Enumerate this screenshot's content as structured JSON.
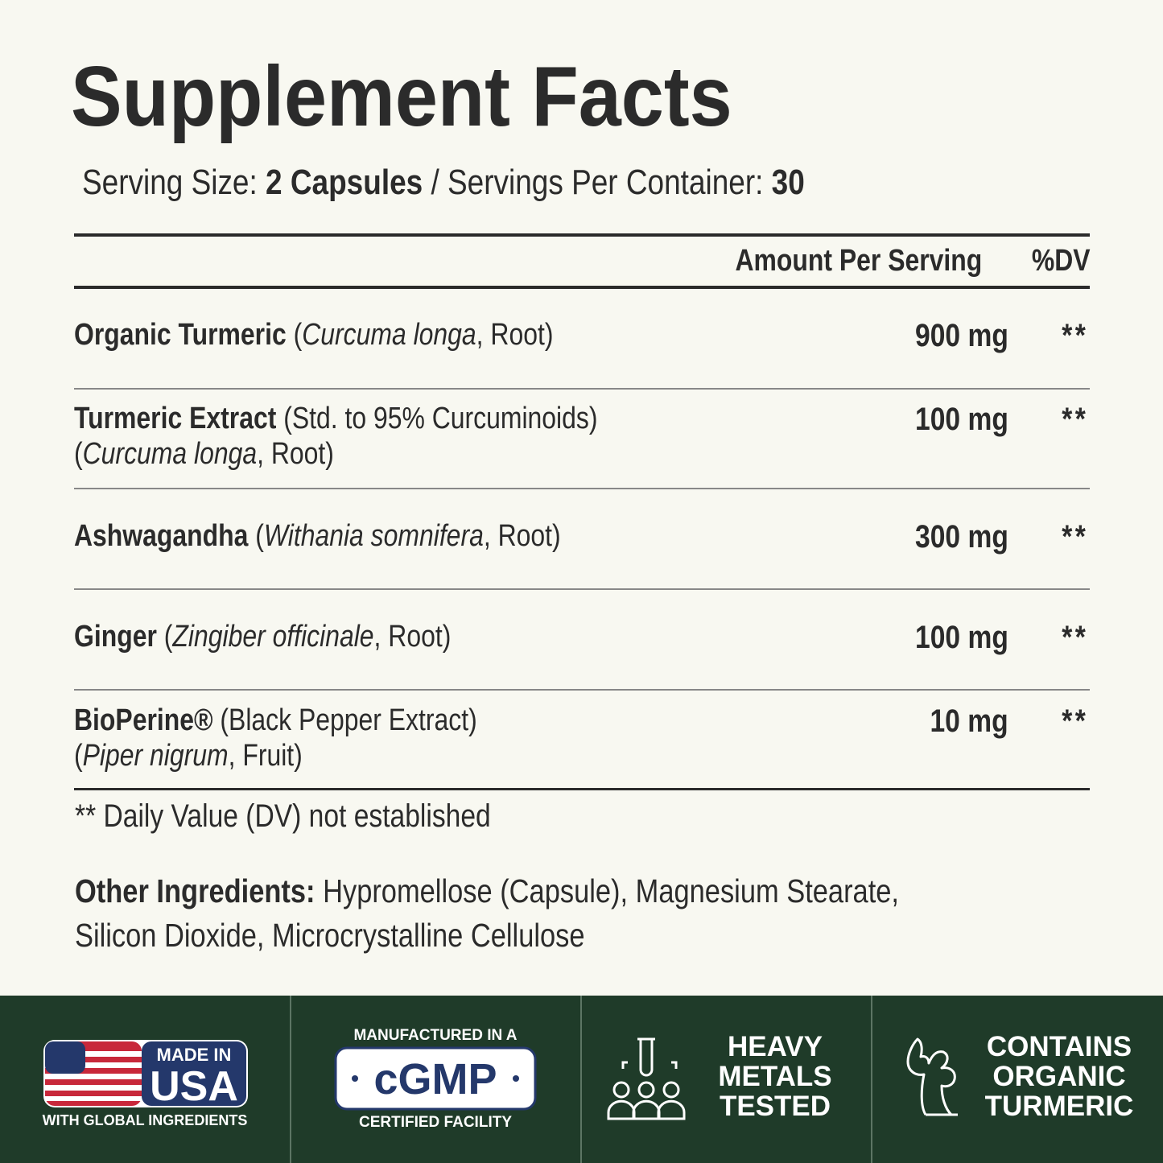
{
  "title": "Supplement Facts",
  "serving": {
    "size_label": "Serving Size:",
    "size_value": "2 Capsules",
    "per_container_label": "/ Servings Per Container:",
    "per_container_value": "30"
  },
  "table": {
    "header": {
      "amount": "Amount Per Serving",
      "dv": "%DV"
    },
    "rows": [
      {
        "lines": [
          [
            {
              "text": "Organic Turmeric",
              "style": "bold"
            },
            {
              "text": " (",
              "style": "normal"
            },
            {
              "text": "Curcuma longa",
              "style": "italic"
            },
            {
              "text": ", Root)",
              "style": "normal"
            }
          ]
        ],
        "amount": "900 mg",
        "dv": "**"
      },
      {
        "lines": [
          [
            {
              "text": "Turmeric Extract",
              "style": "bold"
            },
            {
              "text": " (Std. to 95% Curcuminoids)",
              "style": "normal"
            }
          ],
          [
            {
              "text": "(",
              "style": "normal"
            },
            {
              "text": "Curcuma longa",
              "style": "italic"
            },
            {
              "text": ", Root)",
              "style": "normal"
            }
          ]
        ],
        "amount": "100 mg",
        "dv": "**"
      },
      {
        "lines": [
          [
            {
              "text": "Ashwagandha",
              "style": "bold"
            },
            {
              "text": " (",
              "style": "normal"
            },
            {
              "text": "Withania somnifera",
              "style": "italic"
            },
            {
              "text": ", Root)",
              "style": "normal"
            }
          ]
        ],
        "amount": "300 mg",
        "dv": "**"
      },
      {
        "lines": [
          [
            {
              "text": "Ginger",
              "style": "bold"
            },
            {
              "text": " (",
              "style": "normal"
            },
            {
              "text": "Zingiber officinale",
              "style": "italic"
            },
            {
              "text": ", Root)",
              "style": "normal"
            }
          ]
        ],
        "amount": "100 mg",
        "dv": "**"
      },
      {
        "lines": [
          [
            {
              "text": "BioPerine®",
              "style": "bold"
            },
            {
              "text": " (Black Pepper Extract)",
              "style": "normal"
            }
          ],
          [
            {
              "text": "(",
              "style": "normal"
            },
            {
              "text": "Piper nigrum",
              "style": "italic"
            },
            {
              "text": ", Fruit)",
              "style": "normal"
            }
          ]
        ],
        "amount": "10 mg",
        "dv": "**"
      }
    ]
  },
  "footnote": "** Daily Value (DV) not established",
  "other_ingredients": {
    "label": "Other Ingredients:",
    "lines": [
      "Hypromellose (Capsule), Magnesium Stearate,",
      "Silicon Dioxide, Microcrystalline Cellulose"
    ]
  },
  "badges": [
    {
      "top": "MADE IN",
      "main": "USA",
      "bottom": "WITH GLOBAL INGREDIENTS"
    },
    {
      "top": "MANUFACTURED IN A",
      "main": "cGMP",
      "bottom": "CERTIFIED FACILITY"
    },
    {
      "lines": [
        "HEAVY",
        "METALS",
        "TESTED"
      ]
    },
    {
      "lines": [
        "CONTAINS",
        "ORGANIC",
        "TURMERIC"
      ]
    }
  ]
}
